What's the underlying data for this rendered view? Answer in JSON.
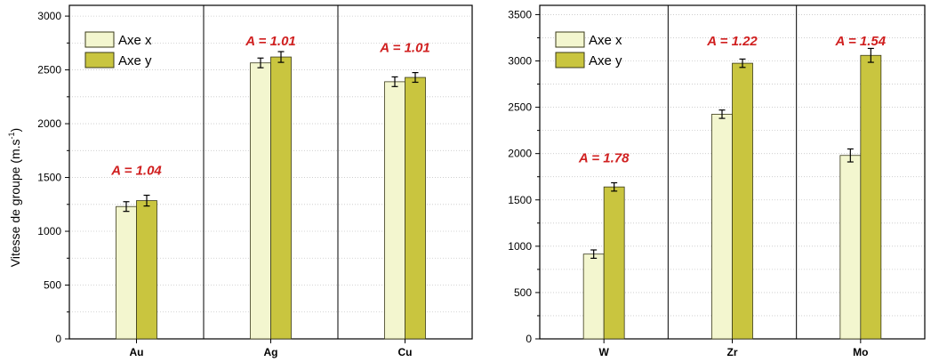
{
  "ylabel": "Vitesse de groupe (m.s",
  "ylabel_sup": "-1",
  "legend": {
    "x_label": "Axe x",
    "y_label": "Axe y"
  },
  "colors": {
    "axe_x": "#f3f6cf",
    "axe_y": "#c9c53f",
    "bar_stroke": "#3a3a1a",
    "annotation": "#d01f1f",
    "grid": "#c8c8c8",
    "axis": "#000000"
  },
  "chart_data": [
    {
      "type": "bar",
      "categories": [
        "Au",
        "Ag",
        "Cu"
      ],
      "series": [
        {
          "name": "Axe x",
          "values": [
            1230,
            2565,
            2390
          ],
          "errors": [
            45,
            45,
            45
          ]
        },
        {
          "name": "Axe y",
          "values": [
            1285,
            2620,
            2430
          ],
          "errors": [
            50,
            50,
            45
          ]
        }
      ],
      "annotations": [
        "A = 1.04",
        "A = 1.01",
        "A = 1.01"
      ],
      "yticks": [
        0,
        500,
        1000,
        1500,
        2000,
        2500,
        3000
      ],
      "ylim": [
        0,
        3100
      ],
      "ylabel": "Vitesse de groupe (m.s-1)",
      "xlabel": "",
      "grid": true,
      "legend": "top-left"
    },
    {
      "type": "bar",
      "categories": [
        "W",
        "Zr",
        "Mo"
      ],
      "series": [
        {
          "name": "Axe x",
          "values": [
            915,
            2425,
            1980
          ],
          "errors": [
            45,
            45,
            70
          ]
        },
        {
          "name": "Axe y",
          "values": [
            1640,
            2975,
            3060
          ],
          "errors": [
            45,
            45,
            75
          ]
        }
      ],
      "annotations": [
        "A = 1.78",
        "A = 1.22",
        "A = 1.54"
      ],
      "yticks": [
        0,
        500,
        1000,
        1500,
        2000,
        2500,
        3000,
        3500
      ],
      "ylim": [
        0,
        3600
      ],
      "ylabel": "",
      "xlabel": "",
      "grid": true,
      "legend": "top-left"
    }
  ]
}
